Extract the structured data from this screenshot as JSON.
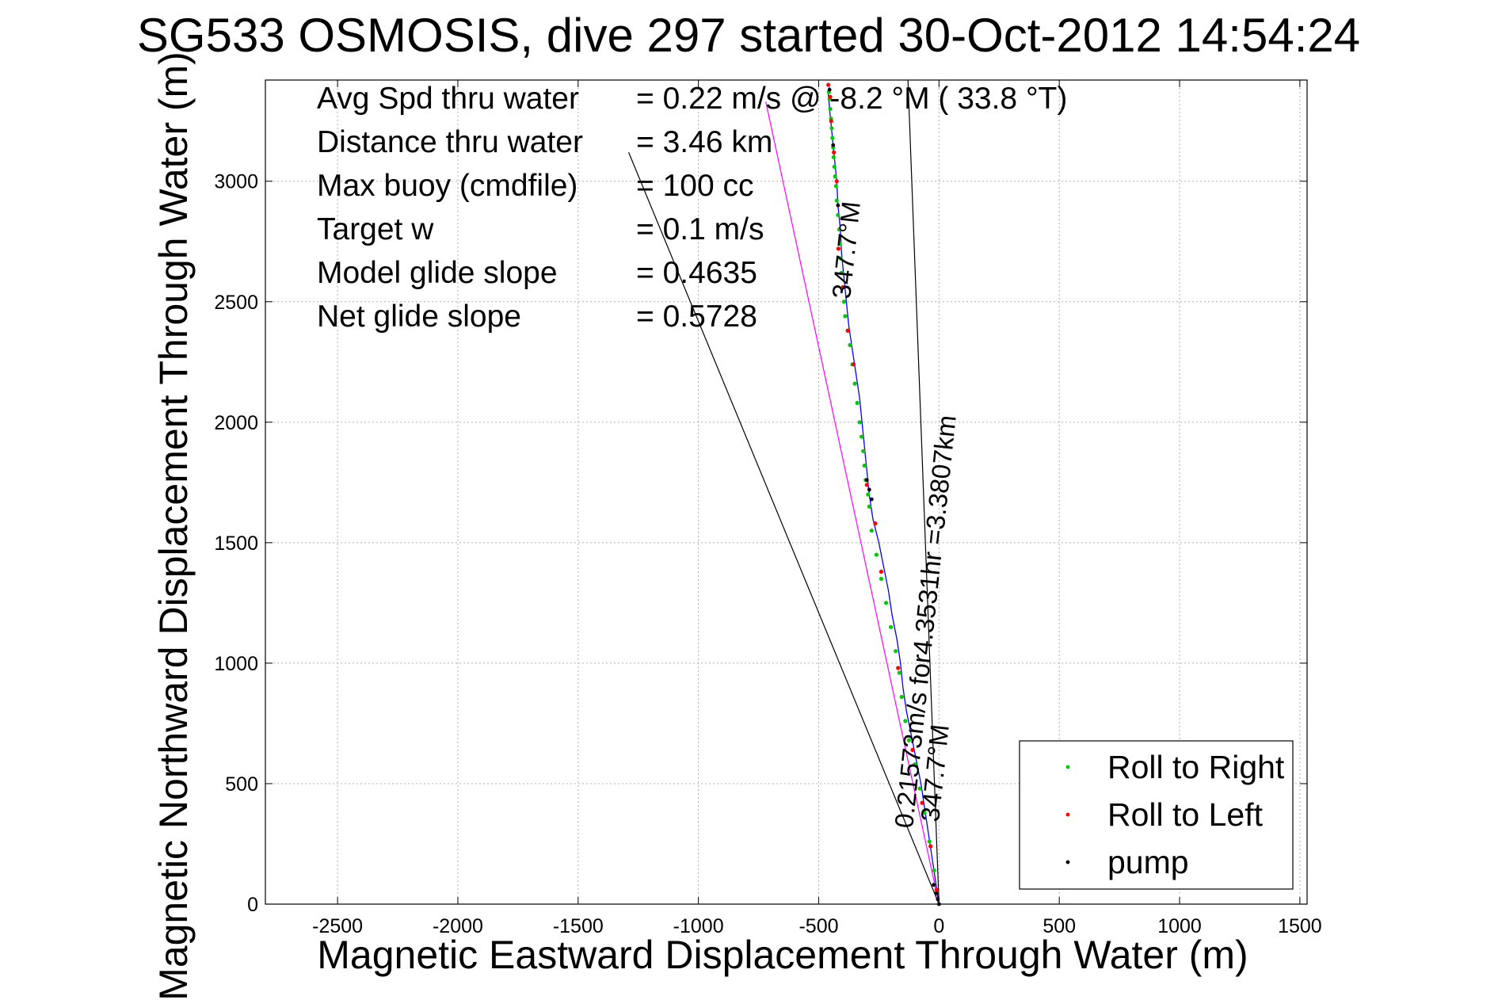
{
  "chart_data": {
    "type": "scatter",
    "title": "SG533 OSMOSIS, dive 297 started 30-Oct-2012 14:54:24",
    "xlabel": "Magnetic Eastward Displacement Through Water (m)",
    "ylabel": "Magnetic Northward Displacement Through Water (m)",
    "xlim": [
      -2800,
      1530
    ],
    "ylim": [
      0,
      3420
    ],
    "xticks": [
      -2500,
      -2000,
      -1500,
      -1000,
      -500,
      0,
      500,
      1000,
      1500
    ],
    "yticks": [
      0,
      500,
      1000,
      1500,
      2000,
      2500,
      3000
    ],
    "xtick_labels": [
      "-2500",
      "-2000",
      "-1500",
      "-1000",
      "-500",
      "0",
      "500",
      "1000",
      "1500"
    ],
    "ytick_labels": [
      "0",
      "500",
      "1000",
      "1500",
      "2000",
      "2500",
      "3000"
    ],
    "grid": true,
    "stats": [
      {
        "label": "Avg Spd thru water",
        "value": "=  0.22 m/s @  -8.2 °M ( 33.8 °T)"
      },
      {
        "label": "Distance thru water",
        "value": "=  3.46 km"
      },
      {
        "label": "Max buoy (cmdfile)",
        "value": "= 100 cc"
      },
      {
        "label": "Target w",
        "value": "= 0.1 m/s"
      },
      {
        "label": "Model glide slope",
        "value": "= 0.4635"
      },
      {
        "label": "Net glide slope",
        "value": "= 0.5728"
      }
    ],
    "legend": {
      "position": "bottom-right",
      "entries": [
        {
          "label": "Roll to Right",
          "color": "#00cc00"
        },
        {
          "label": "Roll to Left",
          "color": "#ff0000"
        },
        {
          "label": "pump",
          "color": "#000000"
        }
      ]
    },
    "annotations": {
      "heading_top": "347.7°M",
      "heading_bottom": "347.7°M",
      "speed_note": "0.21573m/s for4.3531hr =3.3807km"
    },
    "reference_lines": [
      {
        "name": "heading",
        "x": [
          0,
          -129
        ],
        "y": [
          0,
          3420
        ],
        "color": "#000000"
      },
      {
        "name": "bracket-wide",
        "x": [
          0,
          -1290
        ],
        "y": [
          0,
          3120
        ],
        "color": "#000000"
      },
      {
        "name": "current",
        "x": [
          0,
          -720
        ],
        "y": [
          0,
          3330
        ],
        "color": "#ff00ff"
      }
    ],
    "track": {
      "color": "#0000ff",
      "x": [
        0,
        -15,
        -30,
        -45,
        -60,
        -75,
        -95,
        -115,
        -135,
        -150,
        -160,
        -175,
        -195,
        -210,
        -230,
        -250,
        -275,
        -290,
        -300,
        -310,
        -320,
        -330,
        -345,
        -360,
        -375,
        -385,
        -395,
        -405,
        -410,
        -420,
        -425,
        -430,
        -435,
        -440,
        -445,
        -450,
        -455,
        -460,
        -455
      ],
      "y": [
        0,
        100,
        200,
        300,
        400,
        500,
        600,
        700,
        800,
        900,
        1000,
        1100,
        1200,
        1300,
        1400,
        1500,
        1600,
        1700,
        1800,
        1900,
        2000,
        2100,
        2200,
        2300,
        2400,
        2500,
        2600,
        2700,
        2800,
        2900,
        3000,
        3050,
        3100,
        3150,
        3200,
        3250,
        3300,
        3360,
        3390
      ]
    },
    "roll_right": {
      "x": [
        -20,
        -40,
        -60,
        -80,
        -100,
        -125,
        -140,
        -155,
        -165,
        -180,
        -200,
        -220,
        -240,
        -260,
        -280,
        -290,
        -295,
        -305,
        -310,
        -315,
        -322,
        -330,
        -340,
        -350,
        -360,
        -370,
        -380,
        -390,
        -395,
        -400,
        -405,
        -410,
        -412,
        -415,
        -420,
        -425,
        -428,
        -432,
        -435,
        -438,
        -440,
        -443,
        -446,
        -449,
        -452,
        -455,
        -458
      ],
      "y": [
        140,
        260,
        380,
        480,
        580,
        680,
        760,
        860,
        960,
        1050,
        1150,
        1250,
        1350,
        1450,
        1550,
        1650,
        1700,
        1760,
        1820,
        1880,
        1940,
        2000,
        2080,
        2160,
        2240,
        2320,
        2380,
        2440,
        2500,
        2560,
        2620,
        2680,
        2740,
        2800,
        2860,
        2920,
        2980,
        3020,
        3060,
        3100,
        3140,
        3180,
        3220,
        3260,
        3300,
        3340,
        3370
      ]
    },
    "roll_left": {
      "x": [
        -10,
        -35,
        -70,
        -110,
        -170,
        -240,
        -265,
        -300,
        -355,
        -378,
        -398,
        -418,
        -425,
        -437,
        -448,
        -452,
        -460
      ],
      "y": [
        60,
        240,
        420,
        640,
        980,
        1380,
        1580,
        1740,
        2240,
        2380,
        2560,
        2720,
        3000,
        3120,
        3250,
        3350,
        3400
      ]
    },
    "pump": {
      "x": [
        0,
        -5,
        -12,
        -22,
        -280,
        -290,
        -300,
        -420,
        -440,
        -455
      ],
      "y": [
        0,
        20,
        45,
        80,
        1680,
        1720,
        1760,
        2900,
        3150,
        3380
      ]
    }
  }
}
